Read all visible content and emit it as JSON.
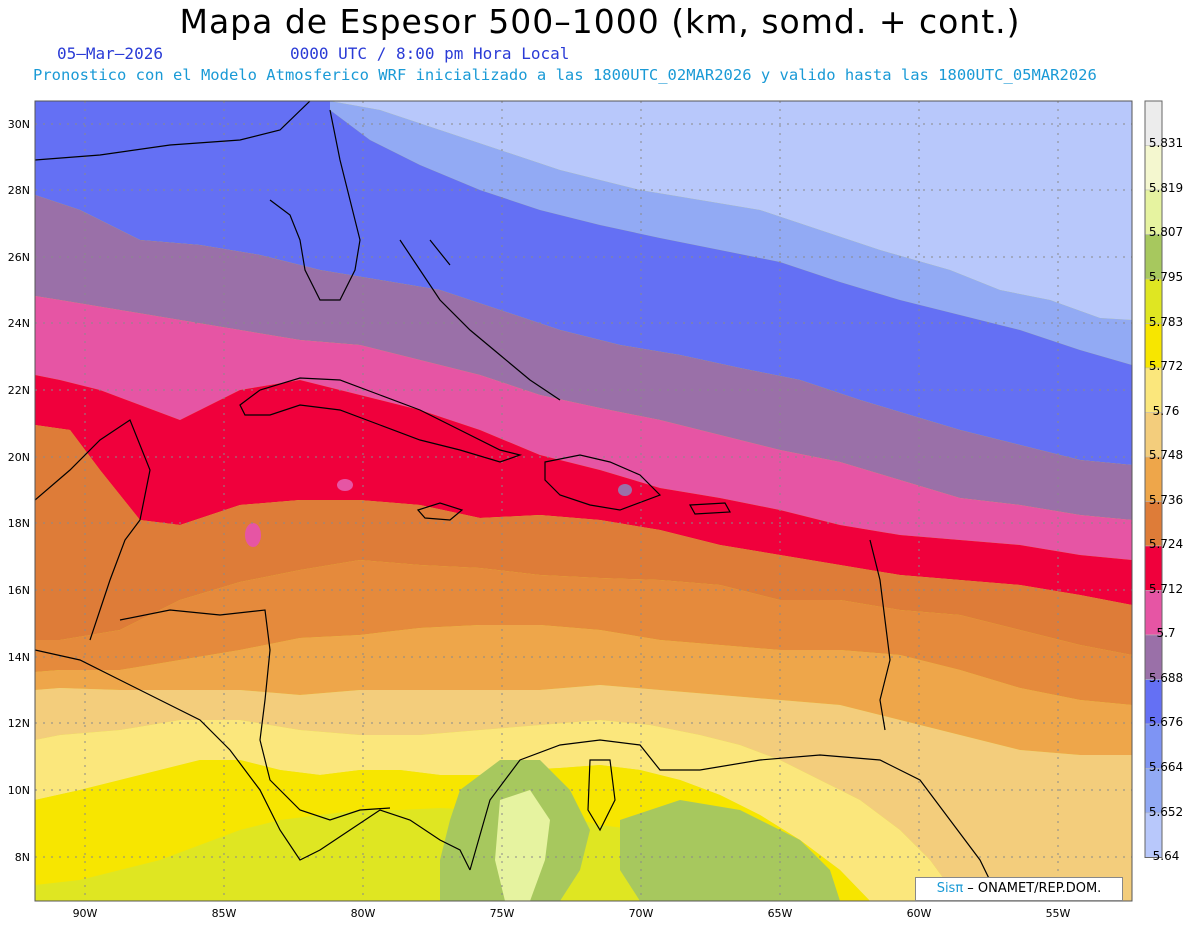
{
  "title": "Mapa de Espesor 500–1000 (km, somd. + cont.)",
  "date": "05–Mar–2026",
  "time_label": "0000 UTC / 8:00 pm Hora Local",
  "description": "Pronostico con el Modelo Atmosferico WRF inicializado a las 1800UTC_02MAR2026 y valido hasta las  1800UTC_05MAR2026",
  "credit": {
    "brand": "Sisπ",
    "text": " – ONAMET/REP.DOM."
  },
  "axes": {
    "lon_labels": [
      "90W",
      "85W",
      "80W",
      "75W",
      "70W",
      "65W",
      "60W",
      "55W"
    ],
    "lat_labels": [
      "30N",
      "28N",
      "26N",
      "24N",
      "22N",
      "20N",
      "18N",
      "16N",
      "14N",
      "12N",
      "10N",
      "8N"
    ]
  },
  "colorbar": {
    "labels": [
      "5.831",
      "5.819",
      "5.807",
      "5.795",
      "5.783",
      "5.772",
      "5.76",
      "5.748",
      "5.736",
      "5.724",
      "5.712",
      "5.7",
      "5.688",
      "5.676",
      "5.664",
      "5.652",
      "5.64"
    ],
    "colors": [
      "#ececec",
      "#f4f7cf",
      "#e6f3a0",
      "#a7c85e",
      "#dfe622",
      "#f7e600",
      "#fbe77c",
      "#f3cd7c",
      "#eea64a",
      "#de7c38",
      "#f0003c",
      "#e655a4",
      "#9a70a8",
      "#6470f4",
      "#7e94f4",
      "#92aaf4",
      "#b8c8fb"
    ]
  },
  "colors": {
    "band_highest_north": "#b8c8fb",
    "band_lowest_south": "#dfe622",
    "title_blue": "#2a3bd6",
    "subtitle_cyan": "#1a9ad6"
  }
}
